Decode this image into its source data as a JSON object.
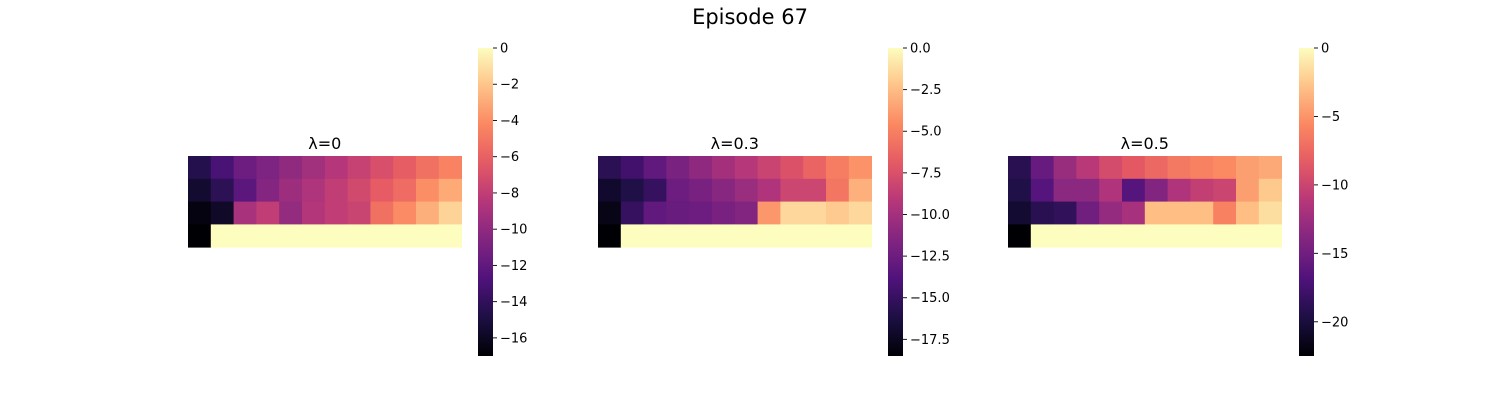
{
  "figure": {
    "title": "Episode 67"
  },
  "colormap": {
    "name": "magma",
    "stops": [
      "#000004",
      "#1c1044",
      "#4f127b",
      "#812581",
      "#b5367a",
      "#e55964",
      "#fb8761",
      "#fec287",
      "#fcfdbf"
    ]
  },
  "chart_data": [
    {
      "type": "heatmap",
      "title": "λ=0",
      "rows": 4,
      "cols": 12,
      "vmin": -17,
      "vmax": 0,
      "colorbar_ticks": [
        0,
        -2,
        -4,
        -6,
        -8,
        -10,
        -12,
        -14,
        -16
      ],
      "colorbar_tick_labels": [
        "0",
        "−2",
        "−4",
        "−6",
        "−8",
        "−10",
        "−12",
        "−14",
        "−16"
      ],
      "values": [
        [
          -14.5,
          -13.0,
          -11.5,
          -10.8,
          -10.0,
          -9.3,
          -8.5,
          -7.8,
          -7.0,
          -6.2,
          -5.3,
          -4.5
        ],
        [
          -15.5,
          -14.2,
          -12.2,
          -10.5,
          -9.5,
          -8.8,
          -8.0,
          -7.3,
          -6.3,
          -5.5,
          -4.0,
          -3.0
        ],
        [
          -16.6,
          -15.8,
          -9.0,
          -8.0,
          -9.9,
          -8.6,
          -8.0,
          -7.6,
          -5.3,
          -4.1,
          -2.8,
          -1.5
        ],
        [
          -17.0,
          0,
          0,
          0,
          0,
          0,
          0,
          0,
          0,
          0,
          0,
          0
        ]
      ]
    },
    {
      "type": "heatmap",
      "title": "λ=0.3",
      "rows": 4,
      "cols": 12,
      "vmin": -18.5,
      "vmax": 0,
      "colorbar_ticks": [
        0,
        -2.5,
        -5,
        -7.5,
        -10,
        -12.5,
        -15,
        -17.5
      ],
      "colorbar_tick_labels": [
        "0.0",
        "−2.5",
        "−5.0",
        "−7.5",
        "−10.0",
        "−12.5",
        "−15.0",
        "−17.5"
      ],
      "values": [
        [
          -15.5,
          -14.5,
          -13.0,
          -11.9,
          -11.0,
          -10.0,
          -9.2,
          -8.3,
          -7.4,
          -6.4,
          -5.2,
          -4.2
        ],
        [
          -17.0,
          -16.0,
          -15.0,
          -12.5,
          -12.0,
          -11.3,
          -10.5,
          -9.5,
          -8.2,
          -8.2,
          -5.5,
          -3.0
        ],
        [
          -17.8,
          -15.0,
          -13.0,
          -12.7,
          -12.5,
          -12.0,
          -11.5,
          -4.0,
          -1.5,
          -1.5,
          -2.0,
          -1.5
        ],
        [
          -18.5,
          0,
          0,
          0,
          0,
          0,
          0,
          0,
          0,
          0,
          0,
          0
        ]
      ]
    },
    {
      "type": "heatmap",
      "title": "λ=0.5",
      "rows": 4,
      "cols": 12,
      "vmin": -22.5,
      "vmax": 0,
      "colorbar_ticks": [
        0,
        -5,
        -10,
        -15,
        -20
      ],
      "colorbar_tick_labels": [
        "0",
        "−5",
        "−10",
        "−15",
        "−20"
      ],
      "values": [
        [
          -19.0,
          -15.5,
          -12.8,
          -11.0,
          -9.5,
          -8.5,
          -7.5,
          -6.5,
          -6.0,
          -5.5,
          -4.5,
          -4.0
        ],
        [
          -19.5,
          -16.5,
          -13.5,
          -13.5,
          -11.5,
          -16.5,
          -14.0,
          -11.5,
          -10.5,
          -10.0,
          -4.5,
          -2.5
        ],
        [
          -20.5,
          -19.0,
          -18.5,
          -15.0,
          -13.0,
          -12.0,
          -3.0,
          -3.0,
          -3.0,
          -6.0,
          -3.0,
          -1.5
        ],
        [
          -22.5,
          0,
          0,
          0,
          0,
          0,
          0,
          0,
          0,
          0,
          0,
          0
        ]
      ]
    }
  ]
}
